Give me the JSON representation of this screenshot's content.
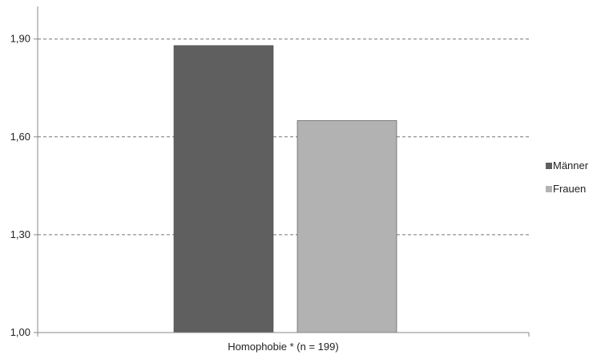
{
  "chart_data": {
    "type": "bar",
    "categories": [
      "Homophobie * (n = 199)"
    ],
    "series": [
      {
        "name": "Männer",
        "values": [
          1.88
        ],
        "color": "#5f5f5f"
      },
      {
        "name": "Frauen",
        "values": [
          1.65
        ],
        "color": "#b2b2b2"
      }
    ],
    "ylim": [
      1.0,
      2.0
    ],
    "yticks": [
      1.0,
      1.3,
      1.6,
      1.9
    ],
    "ytick_labels": [
      "1,00",
      "1,30",
      "1,60",
      "1,90"
    ],
    "grid": true,
    "legend_position": "right"
  }
}
